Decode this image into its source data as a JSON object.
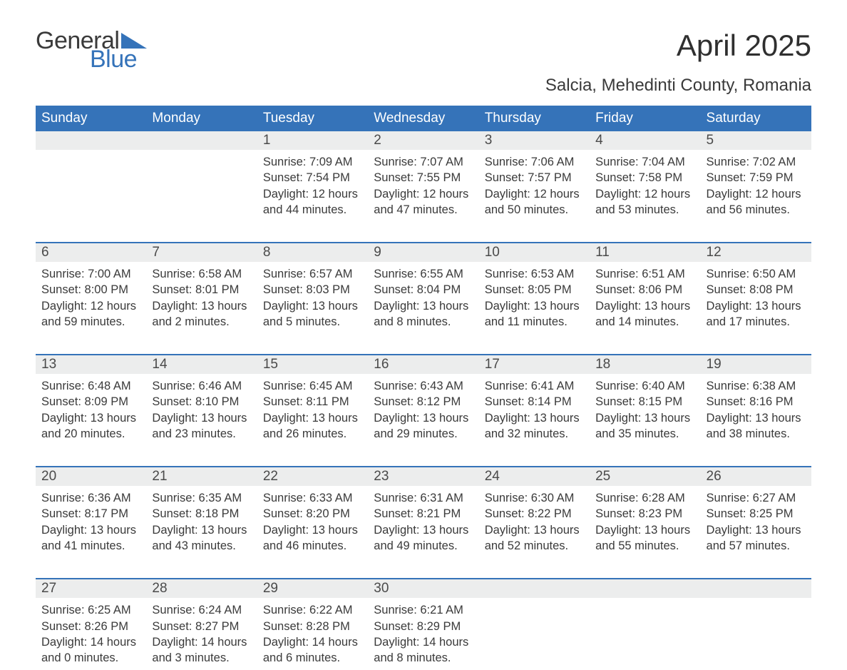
{
  "brand": {
    "word1": "General",
    "word2": "Blue"
  },
  "title": "April 2025",
  "subtitle": "Salcia, Mehedinti County, Romania",
  "colors": {
    "header_bg": "#3573b9",
    "header_text": "#ffffff",
    "daynum_bg": "#eceded",
    "week_border": "#3573b9",
    "body_text": "#3a3a3a",
    "page_bg": "#ffffff"
  },
  "fonts": {
    "title_size_pt": 32,
    "subtitle_size_pt": 18,
    "header_size_pt": 14,
    "body_size_pt": 12
  },
  "calendar": {
    "type": "table",
    "columns": [
      "Sunday",
      "Monday",
      "Tuesday",
      "Wednesday",
      "Thursday",
      "Friday",
      "Saturday"
    ],
    "weeks": [
      [
        null,
        null,
        {
          "n": "1",
          "sr": "7:09 AM",
          "ss": "7:54 PM",
          "dl": "12 hours and 44 minutes."
        },
        {
          "n": "2",
          "sr": "7:07 AM",
          "ss": "7:55 PM",
          "dl": "12 hours and 47 minutes."
        },
        {
          "n": "3",
          "sr": "7:06 AM",
          "ss": "7:57 PM",
          "dl": "12 hours and 50 minutes."
        },
        {
          "n": "4",
          "sr": "7:04 AM",
          "ss": "7:58 PM",
          "dl": "12 hours and 53 minutes."
        },
        {
          "n": "5",
          "sr": "7:02 AM",
          "ss": "7:59 PM",
          "dl": "12 hours and 56 minutes."
        }
      ],
      [
        {
          "n": "6",
          "sr": "7:00 AM",
          "ss": "8:00 PM",
          "dl": "12 hours and 59 minutes."
        },
        {
          "n": "7",
          "sr": "6:58 AM",
          "ss": "8:01 PM",
          "dl": "13 hours and 2 minutes."
        },
        {
          "n": "8",
          "sr": "6:57 AM",
          "ss": "8:03 PM",
          "dl": "13 hours and 5 minutes."
        },
        {
          "n": "9",
          "sr": "6:55 AM",
          "ss": "8:04 PM",
          "dl": "13 hours and 8 minutes."
        },
        {
          "n": "10",
          "sr": "6:53 AM",
          "ss": "8:05 PM",
          "dl": "13 hours and 11 minutes."
        },
        {
          "n": "11",
          "sr": "6:51 AM",
          "ss": "8:06 PM",
          "dl": "13 hours and 14 minutes."
        },
        {
          "n": "12",
          "sr": "6:50 AM",
          "ss": "8:08 PM",
          "dl": "13 hours and 17 minutes."
        }
      ],
      [
        {
          "n": "13",
          "sr": "6:48 AM",
          "ss": "8:09 PM",
          "dl": "13 hours and 20 minutes."
        },
        {
          "n": "14",
          "sr": "6:46 AM",
          "ss": "8:10 PM",
          "dl": "13 hours and 23 minutes."
        },
        {
          "n": "15",
          "sr": "6:45 AM",
          "ss": "8:11 PM",
          "dl": "13 hours and 26 minutes."
        },
        {
          "n": "16",
          "sr": "6:43 AM",
          "ss": "8:12 PM",
          "dl": "13 hours and 29 minutes."
        },
        {
          "n": "17",
          "sr": "6:41 AM",
          "ss": "8:14 PM",
          "dl": "13 hours and 32 minutes."
        },
        {
          "n": "18",
          "sr": "6:40 AM",
          "ss": "8:15 PM",
          "dl": "13 hours and 35 minutes."
        },
        {
          "n": "19",
          "sr": "6:38 AM",
          "ss": "8:16 PM",
          "dl": "13 hours and 38 minutes."
        }
      ],
      [
        {
          "n": "20",
          "sr": "6:36 AM",
          "ss": "8:17 PM",
          "dl": "13 hours and 41 minutes."
        },
        {
          "n": "21",
          "sr": "6:35 AM",
          "ss": "8:18 PM",
          "dl": "13 hours and 43 minutes."
        },
        {
          "n": "22",
          "sr": "6:33 AM",
          "ss": "8:20 PM",
          "dl": "13 hours and 46 minutes."
        },
        {
          "n": "23",
          "sr": "6:31 AM",
          "ss": "8:21 PM",
          "dl": "13 hours and 49 minutes."
        },
        {
          "n": "24",
          "sr": "6:30 AM",
          "ss": "8:22 PM",
          "dl": "13 hours and 52 minutes."
        },
        {
          "n": "25",
          "sr": "6:28 AM",
          "ss": "8:23 PM",
          "dl": "13 hours and 55 minutes."
        },
        {
          "n": "26",
          "sr": "6:27 AM",
          "ss": "8:25 PM",
          "dl": "13 hours and 57 minutes."
        }
      ],
      [
        {
          "n": "27",
          "sr": "6:25 AM",
          "ss": "8:26 PM",
          "dl": "14 hours and 0 minutes."
        },
        {
          "n": "28",
          "sr": "6:24 AM",
          "ss": "8:27 PM",
          "dl": "14 hours and 3 minutes."
        },
        {
          "n": "29",
          "sr": "6:22 AM",
          "ss": "8:28 PM",
          "dl": "14 hours and 6 minutes."
        },
        {
          "n": "30",
          "sr": "6:21 AM",
          "ss": "8:29 PM",
          "dl": "14 hours and 8 minutes."
        },
        null,
        null,
        null
      ]
    ],
    "labels": {
      "sunrise": "Sunrise: ",
      "sunset": "Sunset: ",
      "daylight": "Daylight: "
    }
  }
}
